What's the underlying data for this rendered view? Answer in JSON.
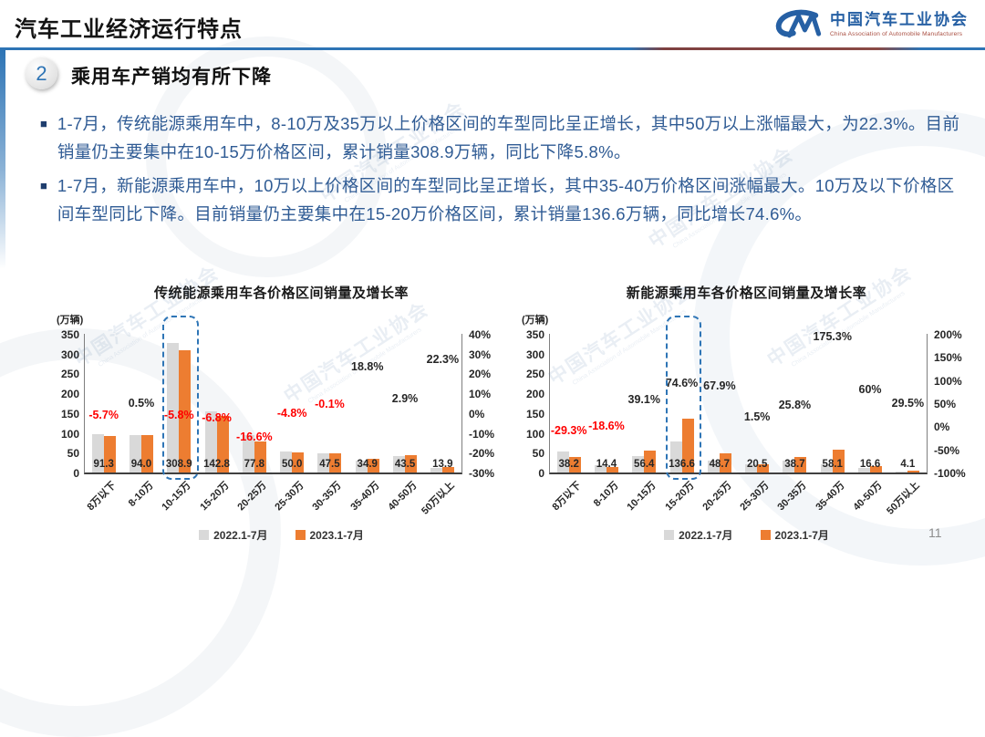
{
  "header": {
    "title": "汽车工业经济运行特点",
    "logo": {
      "org_cn": "中国汽车工业协会",
      "org_en": "China Association of Automobile Manufacturers"
    }
  },
  "section": {
    "number": "2",
    "title": "乘用车产销均有所下降"
  },
  "bullets": [
    {
      "text": "1-7月，传统能源乘用车中，8-10万及35万以上价格区间的车型同比呈正增长，其中50万以上涨幅最大，为22.3%。目前销量仍主要集中在10-15万价格区间，累计销量308.9万辆，同比下降5.8%。"
    },
    {
      "text": "1-7月，新能源乘用车中，10万以上价格区间的车型同比呈正增长，其中35-40万价格区间涨幅最大。10万及以下价格区间车型同比下降。目前销量仍主要集中在15-20万价格区间，累计销量136.6万辆，同比增长74.6%。"
    }
  ],
  "page_number": "11",
  "watermark": {
    "text_cn": "中国汽车工业协会",
    "text_en": "China Association of Automobile Manufacturers"
  },
  "colors": {
    "accent_blue": "#2E74B5",
    "navy_bullet": "#1F3E6E",
    "text_blue": "#2F5B94",
    "bar_gray": "#D9D9D9",
    "bar_orange": "#ED7D31",
    "negative_red": "#FF0000",
    "logo_blue": "#2660A4",
    "divider_maroon": "#7E4040",
    "highlight_dash": "#2E75B6"
  },
  "chart_data": [
    {
      "type": "bar",
      "title": "传统能源乘用车各价格区间销量及增长率",
      "unit_label": "(万辆)",
      "categories": [
        "8万以下",
        "8-10万",
        "10-15万",
        "15-20万",
        "20-25万",
        "25-30万",
        "30-35万",
        "35-40万",
        "40-50万",
        "50万以上"
      ],
      "series": [
        {
          "name": "2022.1-7月",
          "color": "#D9D9D9",
          "values": [
            96.8,
            93.5,
            327.9,
            153.2,
            93.3,
            52.5,
            47.5,
            29.4,
            42.3,
            11.4
          ]
        },
        {
          "name": "2023.1-7月",
          "color": "#ED7D31",
          "values": [
            91.3,
            94.0,
            308.9,
            142.8,
            77.8,
            50.0,
            47.5,
            34.9,
            43.5,
            13.9
          ]
        }
      ],
      "value_labels": [
        "91.3",
        "94.0",
        "308.9",
        "142.8",
        "77.8",
        "50.0",
        "47.5",
        "34.9",
        "43.5",
        "13.9"
      ],
      "growth_labels": [
        {
          "text": "-5.7%",
          "value": -5.7
        },
        {
          "text": "0.5%",
          "value": 0.5
        },
        {
          "text": "-5.8%",
          "value": -5.8
        },
        {
          "text": "-6.8%",
          "value": -6.8
        },
        {
          "text": "-16.6%",
          "value": -16.6
        },
        {
          "text": "-4.8%",
          "value": -4.8
        },
        {
          "text": "-0.1%",
          "value": -0.1
        },
        {
          "text": "18.8%",
          "value": 18.8
        },
        {
          "text": "2.9%",
          "value": 2.9
        },
        {
          "text": "22.3%",
          "value": 22.3
        }
      ],
      "y_axis": {
        "min": 0,
        "max": 350,
        "step": 50
      },
      "y2_axis": {
        "min": -30,
        "max": 40
      },
      "y2_ticks": [
        {
          "text": "40%",
          "value": 40
        },
        {
          "text": "30%",
          "value": 30
        },
        {
          "text": "20%",
          "value": 20
        },
        {
          "text": "10%",
          "value": 10
        },
        {
          "text": "0%",
          "value": 0
        },
        {
          "text": "-10%",
          "value": -10
        },
        {
          "text": "-20%",
          "value": -20
        },
        {
          "text": "-30%",
          "value": -30
        }
      ],
      "highlight_index": 2,
      "highlight_category": "10-15万",
      "legend_position": "bottom"
    },
    {
      "type": "bar",
      "title": "新能源乘用车各价格区间销量及增长率",
      "unit_label": "(万辆)",
      "categories": [
        "8万以下",
        "8-10万",
        "10-15万",
        "15-20万",
        "20-25万",
        "25-30万",
        "30-35万",
        "35-40万",
        "40-50万",
        "50万以上"
      ],
      "series": [
        {
          "name": "2022.1-7月",
          "color": "#D9D9D9",
          "values": [
            54.0,
            17.7,
            40.6,
            78.2,
            29.0,
            20.2,
            30.8,
            21.1,
            10.4,
            3.2
          ]
        },
        {
          "name": "2023.1-7月",
          "color": "#ED7D31",
          "values": [
            38.2,
            14.4,
            56.4,
            136.6,
            48.7,
            20.5,
            38.7,
            58.1,
            16.6,
            4.1
          ]
        }
      ],
      "value_labels": [
        "38.2",
        "14.4",
        "56.4",
        "136.6",
        "48.7",
        "20.5",
        "38.7",
        "58.1",
        "16.6",
        "4.1"
      ],
      "growth_labels": [
        {
          "text": "-29.3%",
          "value": -29.3
        },
        {
          "text": "-18.6%",
          "value": -18.6
        },
        {
          "text": "39.1%",
          "value": 39.1
        },
        {
          "text": "74.6%",
          "value": 74.6
        },
        {
          "text": "67.9%",
          "value": 67.9
        },
        {
          "text": "1.5%",
          "value": 1.5
        },
        {
          "text": "25.8%",
          "value": 25.8
        },
        {
          "text": "175.3%",
          "value": 175.3
        },
        {
          "text": "60%",
          "value": 60
        },
        {
          "text": "29.5%",
          "value": 29.5
        }
      ],
      "y_axis": {
        "min": 0,
        "max": 350,
        "step": 50
      },
      "y2_axis": {
        "min": -100,
        "max": 200
      },
      "y2_ticks": [
        {
          "text": "200%",
          "value": 200
        },
        {
          "text": "150%",
          "value": 150
        },
        {
          "text": "100%",
          "value": 100
        },
        {
          "text": "50%",
          "value": 50
        },
        {
          "text": "0%",
          "value": 0
        },
        {
          "text": "-50%",
          "value": -50
        },
        {
          "text": "-100%",
          "value": -100
        }
      ],
      "highlight_index": 3,
      "highlight_category": "15-20万",
      "legend_position": "bottom"
    }
  ]
}
